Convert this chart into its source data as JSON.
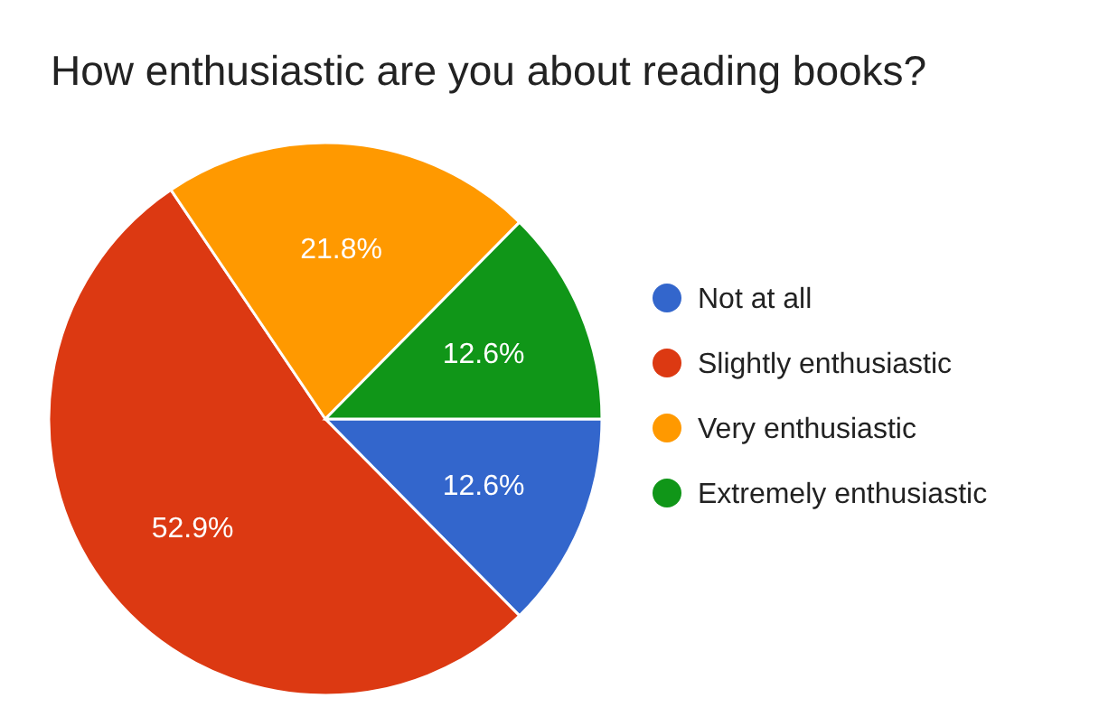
{
  "chart_data": {
    "type": "pie",
    "title": "How enthusiastic are you about reading books?",
    "categories": [
      "Not at all",
      "Slightly enthusiastic",
      "Very enthusiastic",
      "Extremely enthusiastic"
    ],
    "values": [
      12.6,
      52.9,
      21.8,
      12.6
    ],
    "colors": [
      "#3366cc",
      "#dc3912",
      "#ff9900",
      "#109618"
    ],
    "value_labels": [
      "12.6%",
      "52.9%",
      "21.8%",
      "12.6%"
    ],
    "legend": "right"
  }
}
